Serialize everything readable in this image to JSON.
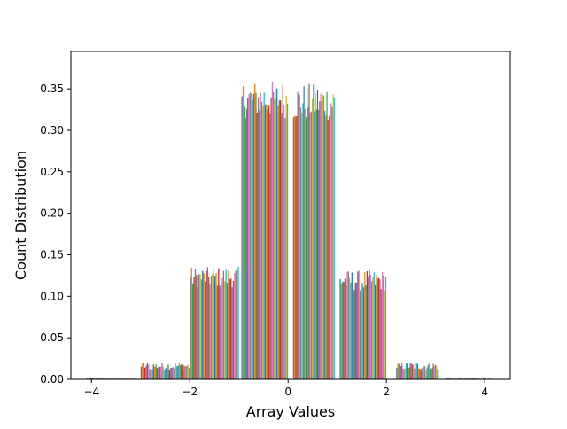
{
  "chart_data": {
    "type": "bar",
    "title": "",
    "xlabel": "Array Values",
    "ylabel": "Count Distribution",
    "xlim": [
      -4.42,
      4.52
    ],
    "ylim": [
      0,
      0.395
    ],
    "grid": false,
    "legend": "none",
    "xticks": [
      -4,
      -2,
      0,
      2,
      4
    ],
    "xtick_labels": [
      "−4",
      "−2",
      "0",
      "2",
      "4"
    ],
    "yticks": [
      0.0,
      0.05,
      0.1,
      0.15,
      0.2,
      0.25,
      0.3,
      0.35
    ],
    "ytick_labels": [
      "0.00",
      "0.05",
      "0.10",
      "0.15",
      "0.20",
      "0.25",
      "0.30",
      "0.35"
    ],
    "bins": [
      {
        "x_start": -4.1,
        "x_end": -3.1,
        "mean_height": 0.001
      },
      {
        "x_start": -3.0,
        "x_end": -2.0,
        "mean_height": 0.016
      },
      {
        "x_start": -2.0,
        "x_end": -1.0,
        "mean_height": 0.123
      },
      {
        "x_start": -0.95,
        "x_end": 0.0,
        "mean_height": 0.337
      },
      {
        "x_start": 0.1,
        "x_end": 0.95,
        "mean_height": 0.334
      },
      {
        "x_start": 1.05,
        "x_end": 2.0,
        "mean_height": 0.119
      },
      {
        "x_start": 2.2,
        "x_end": 3.05,
        "mean_height": 0.016
      },
      {
        "x_start": 3.2,
        "x_end": 4.15,
        "mean_height": 0.001
      }
    ],
    "series_count": 40,
    "series_colors": [
      "#1f77b4",
      "#ff7f0e",
      "#2ca02c",
      "#d62728",
      "#9467bd",
      "#8c564b",
      "#e377c2",
      "#7f7f7f",
      "#bcbd22",
      "#17becf"
    ]
  }
}
